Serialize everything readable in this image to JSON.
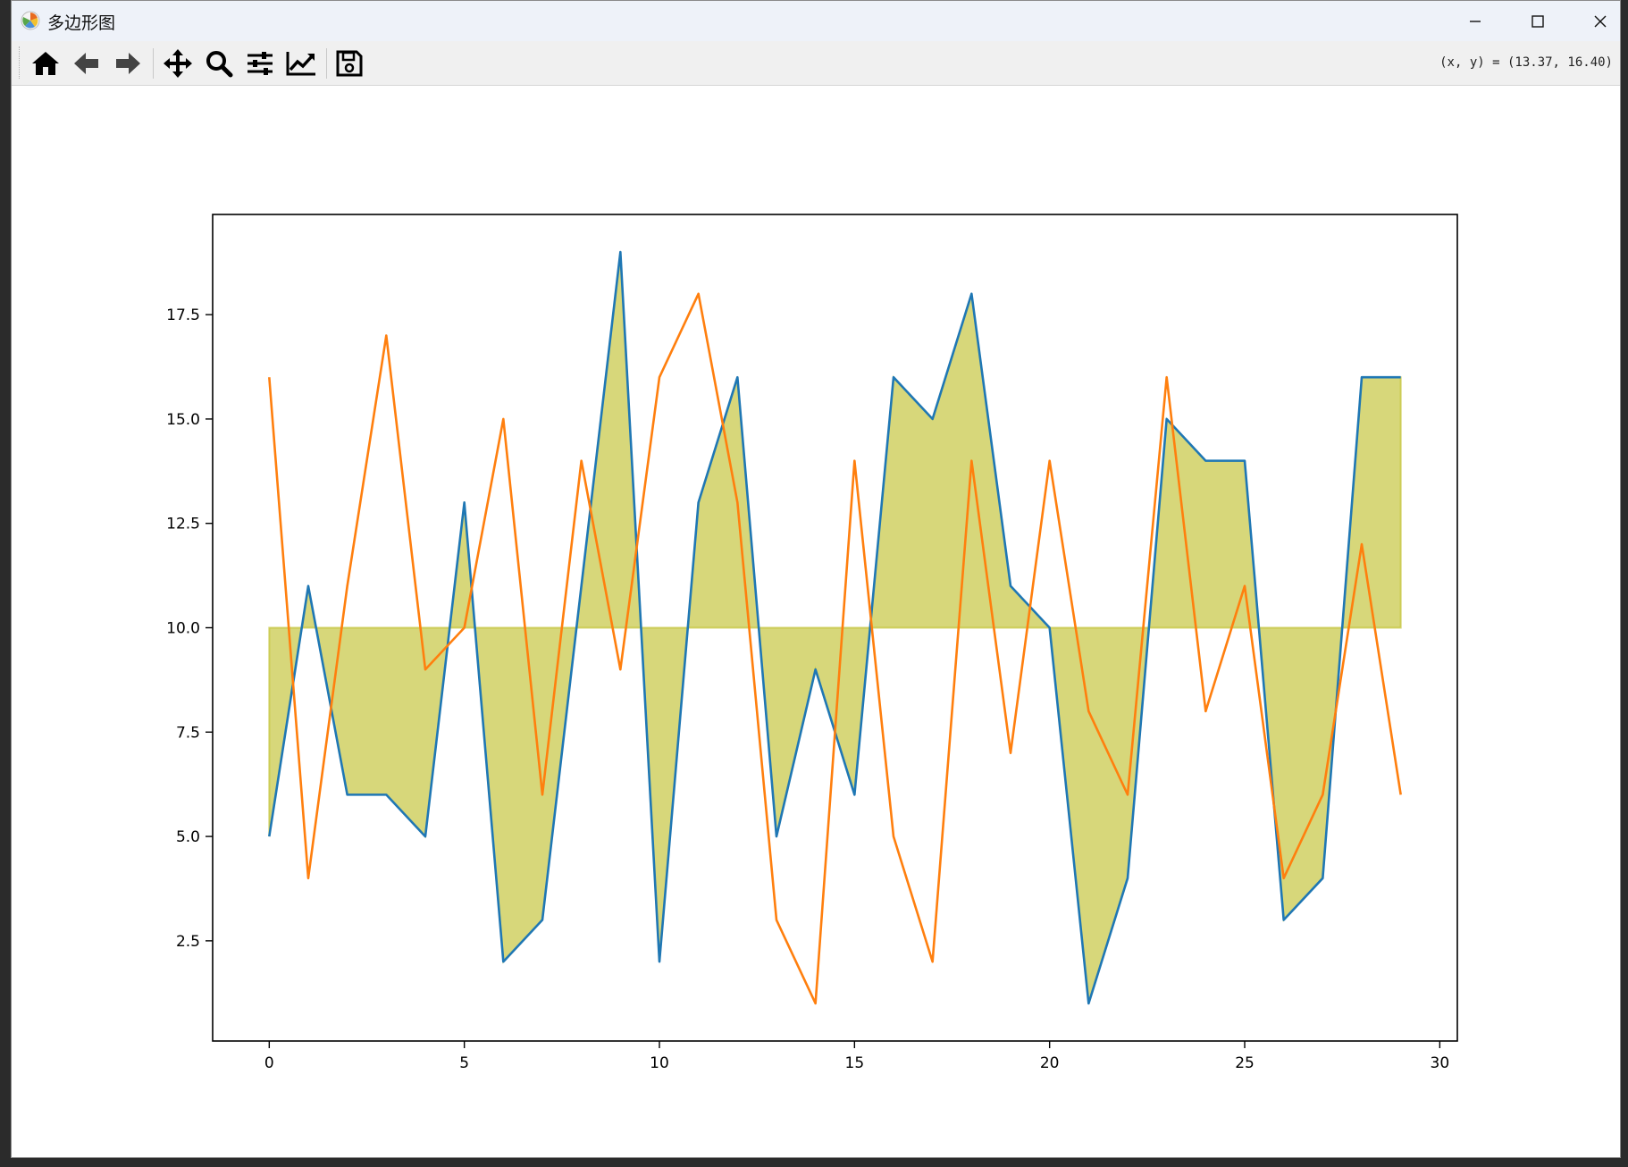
{
  "window": {
    "title": "多边形图",
    "minimize_icon": "minimize-icon",
    "maximize_icon": "maximize-icon",
    "close_icon": "close-icon"
  },
  "toolbar": {
    "buttons": [
      {
        "name": "home",
        "icon": "home-icon"
      },
      {
        "name": "back",
        "icon": "arrow-left-icon"
      },
      {
        "name": "forward",
        "icon": "arrow-right-icon"
      },
      {
        "name": "pan",
        "icon": "move-icon"
      },
      {
        "name": "zoom",
        "icon": "magnifier-icon"
      },
      {
        "name": "configure-subplots",
        "icon": "sliders-icon"
      },
      {
        "name": "edit-axes",
        "icon": "line-chart-icon"
      },
      {
        "name": "save",
        "icon": "floppy-disk-icon"
      }
    ],
    "coords_text": "(x, y) = (13.37, 16.40)"
  },
  "chart_data": {
    "type": "line",
    "title": "",
    "xlabel": "",
    "ylabel": "",
    "xlim": [
      -1.45,
      30.45
    ],
    "ylim": [
      0.1,
      19.9
    ],
    "xticks": [
      0,
      5,
      10,
      15,
      20,
      25,
      30
    ],
    "xtick_labels": [
      "0",
      "5",
      "10",
      "15",
      "20",
      "25",
      "30"
    ],
    "yticks": [
      2.5,
      5.0,
      7.5,
      10.0,
      12.5,
      15.0,
      17.5
    ],
    "ytick_labels": [
      "2.5",
      "5.0",
      "7.5",
      "10.0",
      "12.5",
      "15.0",
      "17.5"
    ],
    "x": [
      0,
      1,
      2,
      3,
      4,
      5,
      6,
      7,
      8,
      9,
      10,
      11,
      12,
      13,
      14,
      15,
      16,
      17,
      18,
      19,
      20,
      21,
      22,
      23,
      24,
      25,
      26,
      27,
      28,
      29
    ],
    "series": [
      {
        "color": "#1f77b4",
        "values": [
          5,
          11,
          6,
          6,
          5,
          13,
          2,
          3,
          11,
          19,
          2,
          13,
          16,
          5,
          9,
          6,
          16,
          15,
          18,
          11,
          10,
          1,
          4,
          15,
          14,
          14,
          3,
          4,
          16,
          16
        ]
      },
      {
        "color": "#ff7f0e",
        "values": [
          16,
          4,
          11,
          17,
          9,
          10,
          15,
          6,
          14,
          9,
          16,
          18,
          13,
          3,
          1,
          14,
          5,
          2,
          14,
          7,
          14,
          8,
          6,
          16,
          8,
          11,
          4,
          6,
          12,
          6
        ]
      }
    ],
    "fill_between": {
      "baseline": 10,
      "series_index": 0,
      "color": "#bcbd22",
      "alpha": 0.6
    },
    "grid": false,
    "legend": false
  }
}
